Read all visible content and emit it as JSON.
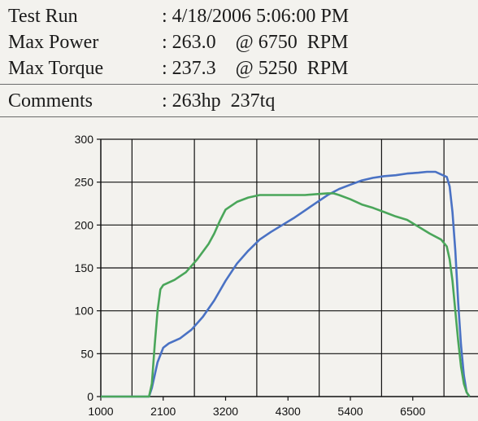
{
  "header": {
    "rows": [
      {
        "label": "Test Run",
        "value": ": 4/18/2006 5:06:00 PM"
      },
      {
        "label": "Max Power",
        "value": ": 263.0    @ 6750  RPM"
      },
      {
        "label": "Max Torque",
        "value": ": 237.3    @ 5250  RPM"
      },
      {
        "label": "Comments",
        "value": ": 263hp  237tq"
      }
    ]
  },
  "colors": {
    "power": "#4a72c4",
    "torque": "#4aa65a",
    "grid": "#111111"
  },
  "chart_data": {
    "type": "line",
    "title": "",
    "xlabel": "",
    "ylabel": "",
    "xlim": [
      1000,
      7650
    ],
    "ylim": [
      0,
      300
    ],
    "x_ticks": [
      1000,
      2100,
      3200,
      4300,
      5400,
      6500
    ],
    "y_ticks": [
      0,
      50,
      100,
      150,
      200,
      250,
      300
    ],
    "grid": true,
    "legend": "none",
    "series": [
      {
        "color": "#4a72c4",
        "x": [
          1000,
          1850,
          1900,
          1950,
          2000,
          2100,
          2200,
          2400,
          2600,
          2800,
          3000,
          3200,
          3400,
          3600,
          3800,
          4000,
          4200,
          4400,
          4600,
          4800,
          5000,
          5200,
          5400,
          5600,
          5800,
          6000,
          6200,
          6400,
          6600,
          6750,
          6900,
          7000,
          7100,
          7150,
          7200,
          7250,
          7300,
          7350,
          7400,
          7450,
          7500
        ],
        "y": [
          0,
          0,
          10,
          25,
          40,
          57,
          62,
          68,
          78,
          93,
          112,
          135,
          155,
          170,
          183,
          192,
          200,
          208,
          217,
          226,
          235,
          242,
          247,
          252,
          255,
          257,
          258,
          260,
          261,
          262,
          262,
          259,
          256,
          245,
          215,
          170,
          110,
          60,
          25,
          5,
          0
        ]
      },
      {
        "color": "#4aa65a",
        "x": [
          1000,
          1850,
          1900,
          1950,
          2000,
          2050,
          2100,
          2300,
          2500,
          2700,
          2900,
          3000,
          3100,
          3200,
          3400,
          3600,
          3800,
          4000,
          4200,
          4400,
          4600,
          4800,
          5000,
          5100,
          5200,
          5400,
          5600,
          5800,
          6000,
          6200,
          6400,
          6600,
          6800,
          7000,
          7100,
          7150,
          7200,
          7250,
          7300,
          7350,
          7400,
          7450,
          7500
        ],
        "y": [
          0,
          0,
          15,
          60,
          100,
          125,
          130,
          136,
          145,
          160,
          178,
          190,
          205,
          218,
          227,
          232,
          235,
          235,
          235,
          235,
          235,
          236,
          237,
          237,
          235,
          230,
          224,
          220,
          215,
          210,
          206,
          198,
          190,
          183,
          175,
          160,
          135,
          100,
          65,
          35,
          15,
          5,
          0
        ]
      }
    ]
  }
}
